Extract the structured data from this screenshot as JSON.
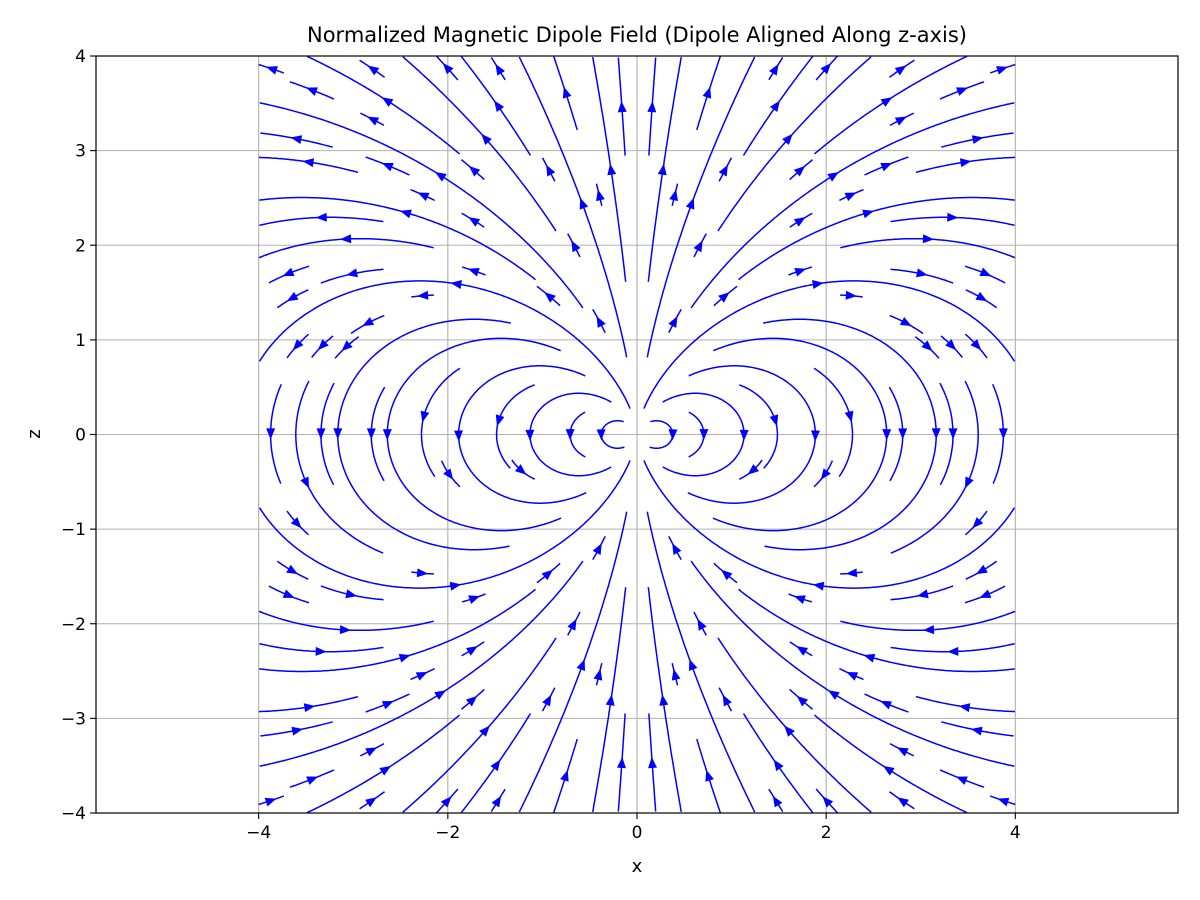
{
  "chart_data": {
    "type": "streamplot",
    "title": "Normalized Magnetic Dipole Field (Dipole Aligned Along z-axis)",
    "xlabel": "x",
    "ylabel": "z",
    "xlim": [
      -5.72,
      5.72
    ],
    "ylim": [
      -4,
      4
    ],
    "data_domain": {
      "x": [
        -4,
        4
      ],
      "z": [
        -4,
        4
      ]
    },
    "field": "normalized magnetic dipole, moment along +z",
    "x_ticks": [
      -4,
      -2,
      0,
      2,
      4
    ],
    "x_tick_labels": [
      "−4",
      "−2",
      "0",
      "2",
      "4"
    ],
    "y_ticks": [
      -4,
      -3,
      -2,
      -1,
      0,
      1,
      2,
      3,
      4
    ],
    "y_tick_labels": [
      "−4",
      "−3",
      "−2",
      "−1",
      "0",
      "1",
      "2",
      "3",
      "4"
    ],
    "grid": true,
    "line_color": "#0000ff",
    "grid_color": "#b0b0b0"
  }
}
